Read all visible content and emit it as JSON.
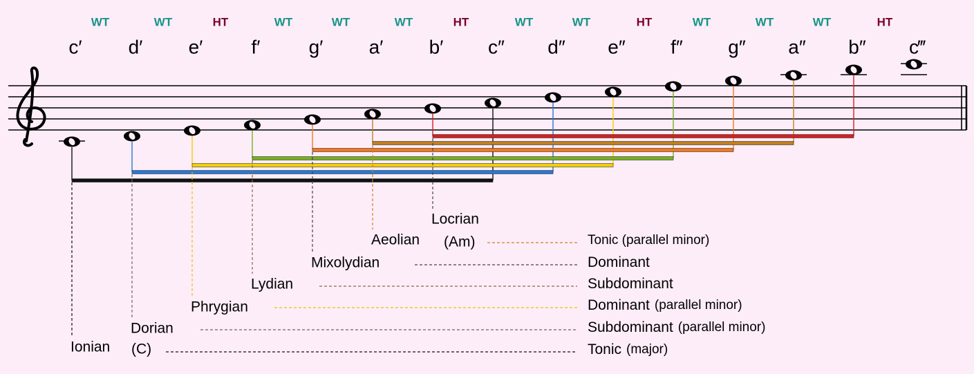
{
  "intervals": [
    "WT",
    "WT",
    "HT",
    "WT",
    "WT",
    "WT",
    "HT",
    "WT",
    "WT",
    "HT",
    "WT",
    "WT",
    "WT",
    "HT"
  ],
  "notes": [
    "c′",
    "d′",
    "e′",
    "f′",
    "g′",
    "a′",
    "b′",
    "c″",
    "d″",
    "e″",
    "f″",
    "g″",
    "a″",
    "b″",
    "c‴"
  ],
  "modes": [
    {
      "name": "Ionian",
      "key": "(C)",
      "function": "Tonic",
      "qualifier": "(major)"
    },
    {
      "name": "Dorian",
      "function": "Subdominant",
      "qualifier": "(parallel minor)"
    },
    {
      "name": "Phrygian",
      "function": "Dominant",
      "qualifier": "(parallel minor)"
    },
    {
      "name": "Lydian",
      "function": "Subdominant"
    },
    {
      "name": "Mixolydian",
      "function": "Dominant"
    },
    {
      "name": "Aeolian",
      "key": "(Am)",
      "function": "Tonic (parallel minor)"
    },
    {
      "name": "Locrian"
    }
  ]
}
